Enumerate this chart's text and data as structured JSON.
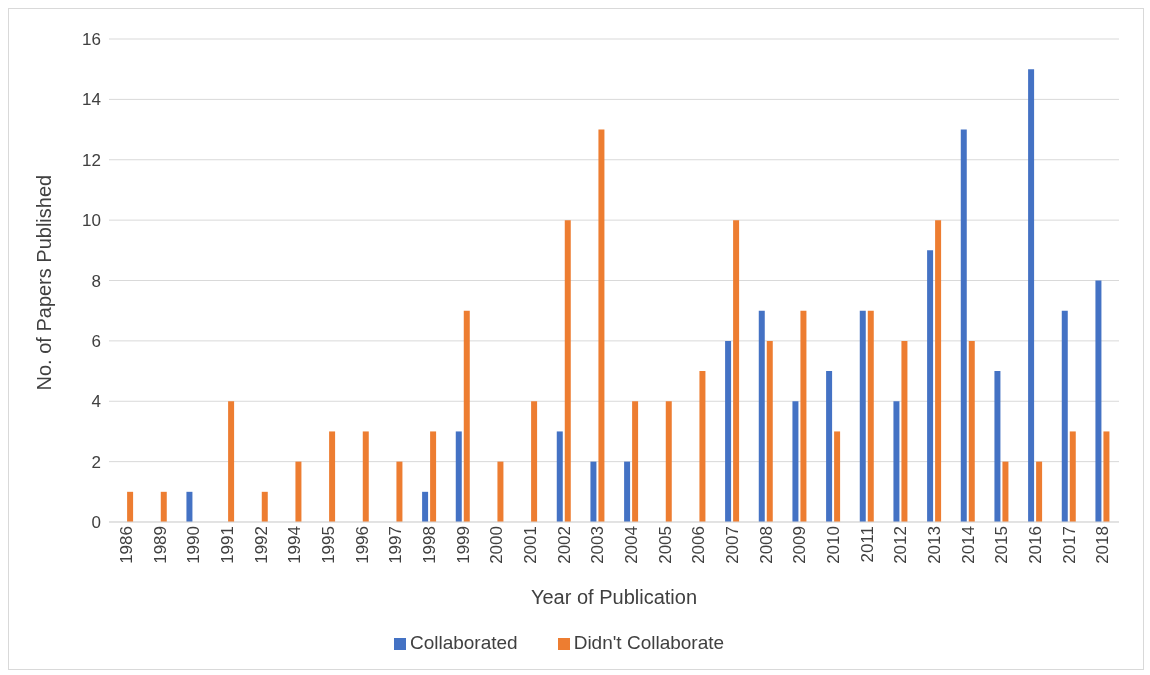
{
  "chart_data": {
    "type": "bar",
    "xlabel": "Year of Publication",
    "ylabel": "No. of Papers Published",
    "categories": [
      "1986",
      "1989",
      "1990",
      "1991",
      "1992",
      "1994",
      "1995",
      "1996",
      "1997",
      "1998",
      "1999",
      "2000",
      "2001",
      "2002",
      "2003",
      "2004",
      "2005",
      "2006",
      "2007",
      "2008",
      "2009",
      "2010",
      "2011",
      "2012",
      "2013",
      "2014",
      "2015",
      "2016",
      "2017",
      "2018"
    ],
    "series": [
      {
        "name": "Collaborated",
        "color": "#4472c4",
        "values": [
          0,
          0,
          1,
          0,
          0,
          0,
          0,
          0,
          0,
          1,
          3,
          0,
          0,
          3,
          2,
          2,
          0,
          0,
          6,
          7,
          4,
          5,
          7,
          4,
          9,
          13,
          5,
          15,
          7,
          8
        ]
      },
      {
        "name": "Didn't Collaborate",
        "color": "#ed7d31",
        "values": [
          1,
          1,
          0,
          4,
          1,
          2,
          3,
          3,
          2,
          3,
          7,
          2,
          4,
          10,
          13,
          4,
          4,
          5,
          10,
          6,
          7,
          3,
          7,
          6,
          10,
          6,
          2,
          2,
          3,
          3
        ]
      }
    ],
    "ylim": [
      0,
      16
    ],
    "yticks": [
      0,
      2,
      4,
      6,
      8,
      10,
      12,
      14,
      16
    ],
    "grid": "y",
    "legend": "bottom"
  }
}
